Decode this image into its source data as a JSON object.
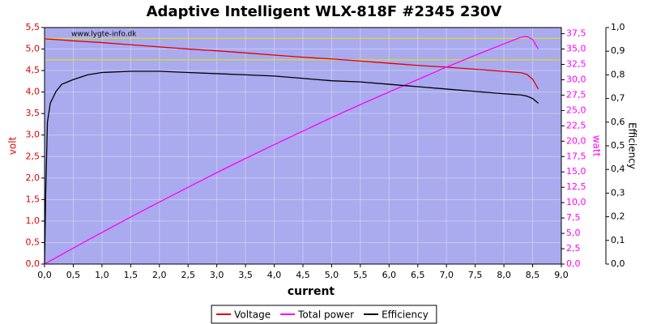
{
  "chart_data": {
    "type": "line",
    "title": "Adaptive Intelligent WLX-818F #2345 230V",
    "watermark": "www.lygte-info.dk",
    "xlabel": "current",
    "ylabel": "volt",
    "y2label": "watt",
    "y3label": "Efficiency",
    "x": [
      0,
      0.02,
      0.05,
      0.1,
      0.2,
      0.3,
      0.5,
      0.75,
      1,
      1.5,
      2,
      2.5,
      3,
      3.5,
      4,
      4.5,
      5,
      5.5,
      6,
      6.5,
      7,
      7.5,
      8,
      8.3,
      8.4,
      8.5,
      8.6
    ],
    "series": [
      {
        "name": "Voltage",
        "color": "#e00000",
        "axis": "y",
        "values": [
          5.24,
          5.24,
          5.23,
          5.23,
          5.22,
          5.21,
          5.19,
          5.17,
          5.15,
          5.1,
          5.05,
          5.0,
          4.96,
          4.91,
          4.86,
          4.81,
          4.77,
          4.72,
          4.67,
          4.62,
          4.58,
          4.53,
          4.48,
          4.45,
          4.41,
          4.3,
          4.07
        ]
      },
      {
        "name": "Total power",
        "color": "#ff00ff",
        "axis": "y2",
        "values": [
          0,
          0.1,
          0.26,
          0.52,
          1.04,
          1.56,
          2.6,
          3.88,
          5.15,
          7.65,
          10.1,
          12.5,
          14.88,
          17.19,
          19.44,
          21.65,
          23.85,
          25.96,
          28.02,
          30.03,
          32.06,
          33.98,
          35.84,
          36.94,
          37.04,
          36.55,
          35.0
        ]
      },
      {
        "name": "Efficiency",
        "color": "#000000",
        "axis": "y3",
        "values": [
          0,
          0.3,
          0.6,
          0.68,
          0.73,
          0.76,
          0.78,
          0.8,
          0.81,
          0.815,
          0.815,
          0.81,
          0.805,
          0.8,
          0.795,
          0.785,
          0.775,
          0.77,
          0.76,
          0.75,
          0.74,
          0.73,
          0.72,
          0.715,
          0.71,
          0.7,
          0.68
        ]
      }
    ],
    "hlines": [
      4.75,
      5.25
    ],
    "hline_color": "#e8e800",
    "xlim": [
      0,
      9
    ],
    "xticks": [
      {
        "value": 0,
        "label": "0,0"
      },
      {
        "value": 0.5,
        "label": "0,5"
      },
      {
        "value": 1,
        "label": "1,0"
      },
      {
        "value": 1.5,
        "label": "1,5"
      },
      {
        "value": 2,
        "label": "2,0"
      },
      {
        "value": 2.5,
        "label": "2,5"
      },
      {
        "value": 3,
        "label": "3,0"
      },
      {
        "value": 3.5,
        "label": "3,5"
      },
      {
        "value": 4,
        "label": "4,0"
      },
      {
        "value": 4.5,
        "label": "4,5"
      },
      {
        "value": 5,
        "label": "5,0"
      },
      {
        "value": 5.5,
        "label": "5,5"
      },
      {
        "value": 6,
        "label": "6,0"
      },
      {
        "value": 6.5,
        "label": "6,5"
      },
      {
        "value": 7,
        "label": "7,0"
      },
      {
        "value": 7.5,
        "label": "7,5"
      },
      {
        "value": 8,
        "label": "8,0"
      },
      {
        "value": 8.5,
        "label": "8,5"
      },
      {
        "value": 9,
        "label": "9,0"
      }
    ],
    "ylim": [
      0,
      5.5
    ],
    "yticks": [
      {
        "value": 0,
        "label": "0,0"
      },
      {
        "value": 0.5,
        "label": "0,5"
      },
      {
        "value": 1,
        "label": "1,0"
      },
      {
        "value": 1.5,
        "label": "1,5"
      },
      {
        "value": 2,
        "label": "2,0"
      },
      {
        "value": 2.5,
        "label": "2,5"
      },
      {
        "value": 3,
        "label": "3,0"
      },
      {
        "value": 3.5,
        "label": "3,5"
      },
      {
        "value": 4,
        "label": "4,0"
      },
      {
        "value": 4.5,
        "label": "4,5"
      },
      {
        "value": 5,
        "label": "5,0"
      },
      {
        "value": 5.5,
        "label": "5,5"
      }
    ],
    "y2lim": [
      0,
      38.5
    ],
    "y2ticks": [
      {
        "value": 0,
        "label": "0,0"
      },
      {
        "value": 2.5,
        "label": "2,5"
      },
      {
        "value": 5,
        "label": "5,0"
      },
      {
        "value": 7.5,
        "label": "7,5"
      },
      {
        "value": 10,
        "label": "10,0"
      },
      {
        "value": 12.5,
        "label": "12,5"
      },
      {
        "value": 15,
        "label": "15,0"
      },
      {
        "value": 17.5,
        "label": "17,5"
      },
      {
        "value": 20,
        "label": "20,0"
      },
      {
        "value": 22.5,
        "label": "22,5"
      },
      {
        "value": 25,
        "label": "25,0"
      },
      {
        "value": 27.5,
        "label": "27,5"
      },
      {
        "value": 30,
        "label": "30,0"
      },
      {
        "value": 32.5,
        "label": "32,5"
      },
      {
        "value": 35,
        "label": "35,0"
      },
      {
        "value": 37.5,
        "label": "37,5"
      }
    ],
    "y3lim": [
      0,
      1
    ],
    "y3ticks": [
      {
        "value": 0,
        "label": "0,0"
      },
      {
        "value": 0.1,
        "label": "0,1"
      },
      {
        "value": 0.2,
        "label": "0,2"
      },
      {
        "value": 0.3,
        "label": "0,3"
      },
      {
        "value": 0.4,
        "label": "0,4"
      },
      {
        "value": 0.5,
        "label": "0,5"
      },
      {
        "value": 0.6,
        "label": "0,6"
      },
      {
        "value": 0.7,
        "label": "0,7"
      },
      {
        "value": 0.8,
        "label": "0,8"
      },
      {
        "value": 0.9,
        "label": "0,9"
      },
      {
        "value": 1,
        "label": "1,0"
      }
    ],
    "grid": true,
    "background": "#aaaaee",
    "legend": "bottom"
  }
}
